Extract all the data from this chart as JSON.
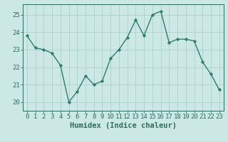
{
  "x": [
    0,
    1,
    2,
    3,
    4,
    5,
    6,
    7,
    8,
    9,
    10,
    11,
    12,
    13,
    14,
    15,
    16,
    17,
    18,
    19,
    20,
    21,
    22,
    23
  ],
  "y": [
    23.8,
    23.1,
    23.0,
    22.8,
    22.1,
    20.0,
    20.6,
    21.5,
    21.0,
    21.2,
    22.5,
    23.0,
    23.7,
    24.7,
    23.8,
    25.0,
    25.2,
    23.4,
    23.6,
    23.6,
    23.5,
    22.3,
    21.6,
    20.7
  ],
  "line_color": "#2e7d6e",
  "marker": "D",
  "marker_size": 2.2,
  "bg_color": "#cce8e5",
  "grid_color": "#a8ccc9",
  "xlabel": "Humidex (Indice chaleur)",
  "xlim": [
    -0.5,
    23.5
  ],
  "ylim": [
    19.5,
    25.6
  ],
  "yticks": [
    20,
    21,
    22,
    23,
    24,
    25
  ],
  "xtick_labels": [
    "0",
    "1",
    "2",
    "3",
    "4",
    "5",
    "6",
    "7",
    "8",
    "9",
    "10",
    "11",
    "12",
    "13",
    "14",
    "15",
    "16",
    "17",
    "18",
    "19",
    "20",
    "21",
    "22",
    "23"
  ],
  "xlabel_fontsize": 7.5,
  "tick_fontsize": 6.5,
  "tick_color": "#2e6b60",
  "axis_color": "#2e6b60",
  "line_width": 1.0
}
